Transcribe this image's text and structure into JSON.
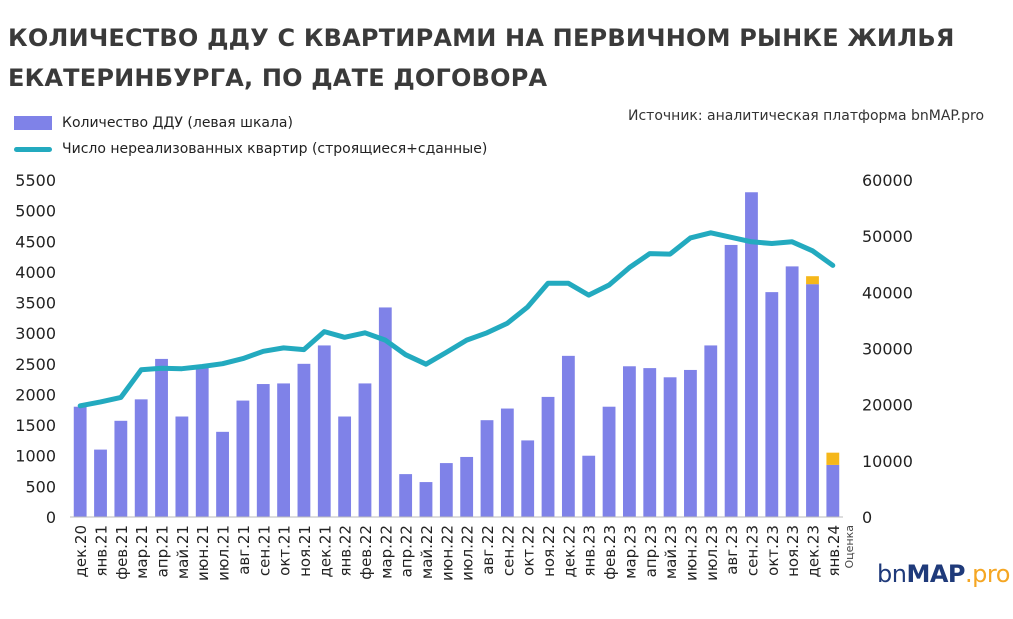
{
  "title_line1": "КОЛИЧЕСТВО ДДУ С КВАРТИРАМИ НА ПЕРВИЧНОМ РЫНКЕ ЖИЛЬЯ",
  "title_line2": "ЕКАТЕРИНБУРГА, ПО ДАТЕ ДОГОВОРА",
  "source": "Источник: аналитическая платформа bnMAP.pro",
  "logo": {
    "part1": "bn",
    "part2": "MAP",
    "part3": ".pro"
  },
  "colors": {
    "bar": "#7f82e8",
    "estimate": "#f5b71a",
    "line": "#23aabf"
  },
  "chart_data": {
    "type": "bar+line",
    "legend": [
      "Количество ДДУ (левая шкала)",
      "Число нереализованных квартир (строящиеся+сданные)"
    ],
    "categories": [
      "дек.20",
      "янв.21",
      "фев.21",
      "мар.21",
      "апр.21",
      "май.21",
      "июн.21",
      "июл.21",
      "авг.21",
      "сен.21",
      "окт.21",
      "ноя.21",
      "дек.21",
      "янв.22",
      "фев.22",
      "мар.22",
      "апр.22",
      "май.22",
      "июн.22",
      "июл.22",
      "авг.22",
      "сен.22",
      "окт.22",
      "ноя.22",
      "дек.22",
      "янв.23",
      "фев.23",
      "мар.23",
      "апр.23",
      "май.23",
      "июн.23",
      "июл.23",
      "авг.23",
      "сен.23",
      "окт.23",
      "ноя.23",
      "дек.23",
      "янв.24"
    ],
    "estimate_label": "Оценка",
    "bars": {
      "name": "Количество ДДУ (левая шкала)",
      "axis": "left",
      "values": [
        1800,
        1100,
        1570,
        1920,
        2580,
        1640,
        2460,
        1390,
        1900,
        2170,
        2180,
        2500,
        2800,
        1640,
        2180,
        3420,
        700,
        570,
        880,
        980,
        1580,
        1770,
        1250,
        1960,
        2630,
        1000,
        1800,
        2460,
        2430,
        2280,
        2400,
        2800,
        4440,
        5300,
        3670,
        4090,
        3800,
        850
      ],
      "estimate": [
        0,
        0,
        0,
        0,
        0,
        0,
        0,
        0,
        0,
        0,
        0,
        0,
        0,
        0,
        0,
        0,
        0,
        0,
        0,
        0,
        0,
        0,
        0,
        0,
        0,
        0,
        0,
        0,
        0,
        0,
        0,
        0,
        0,
        0,
        0,
        0,
        130,
        200
      ]
    },
    "line": {
      "name": "Число нереализованных квартир (строящиеся+сданные)",
      "axis": "right",
      "values": [
        19800,
        20500,
        21300,
        26200,
        26500,
        26400,
        26800,
        27300,
        28200,
        29500,
        30100,
        29800,
        33000,
        32000,
        32800,
        31500,
        28900,
        27200,
        29300,
        31500,
        32800,
        34500,
        37400,
        41600,
        41600,
        39500,
        41300,
        44400,
        46900,
        46800,
        49700,
        50600,
        49800,
        49000,
        48700,
        49000,
        47400,
        44800
      ]
    },
    "y_left": {
      "min": 0,
      "max": 5500,
      "ticks": [
        0,
        500,
        1000,
        1500,
        2000,
        2500,
        3000,
        3500,
        4000,
        4500,
        5000,
        5500
      ]
    },
    "y_right": {
      "min": 0,
      "max": 60000,
      "ticks": [
        0,
        10000,
        20000,
        30000,
        40000,
        50000,
        60000
      ]
    }
  }
}
